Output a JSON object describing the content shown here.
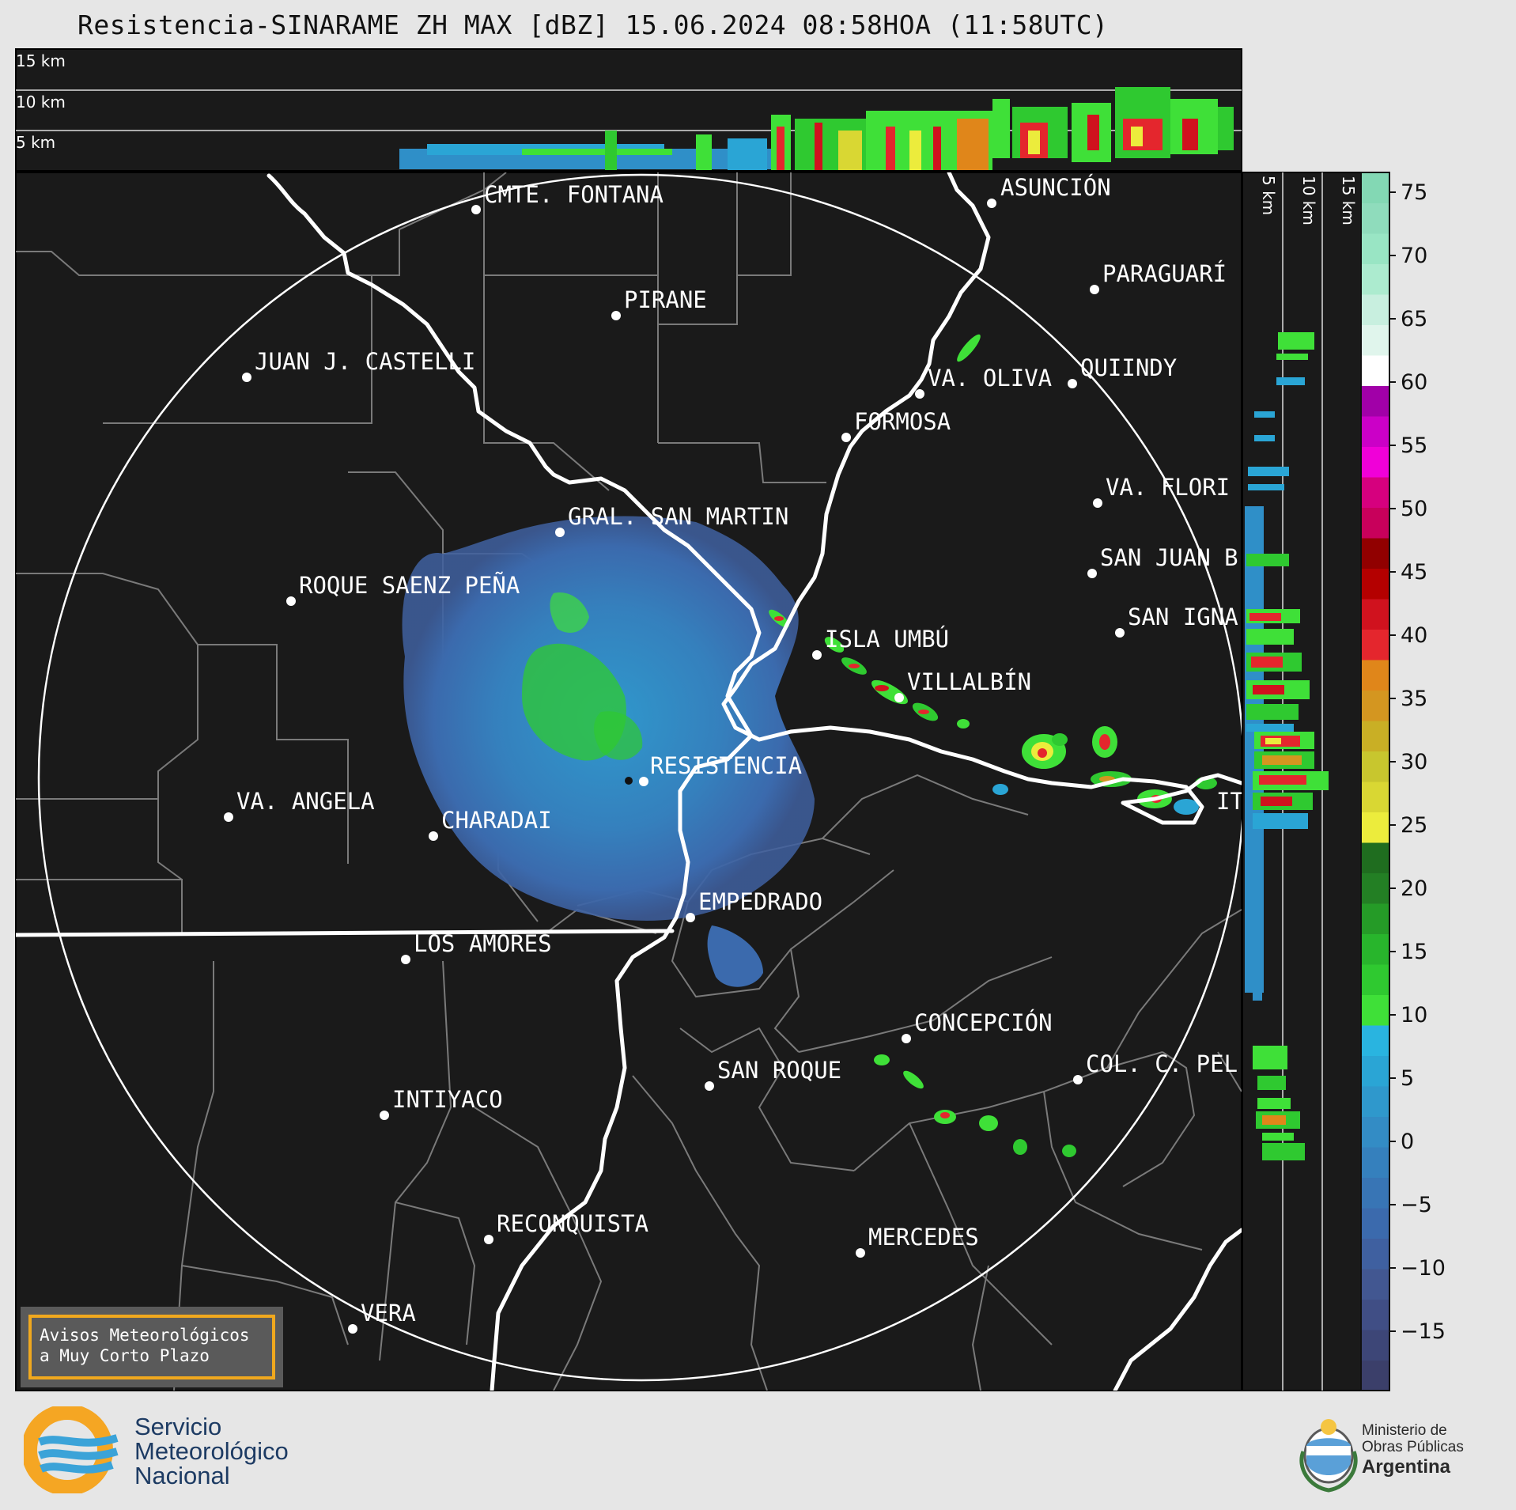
{
  "title": "Resistencia-SINARAME ZH MAX [dBZ] 15.06.2024 08:58HOA (11:58UTC)",
  "top_panel": {
    "km_labels": [
      "15 km",
      "10 km",
      "5 km"
    ]
  },
  "side_panel": {
    "km_labels": [
      "5 km",
      "10 km",
      "15 km"
    ]
  },
  "colorbar": {
    "ticks": [
      "75",
      "70",
      "65",
      "60",
      "55",
      "50",
      "45",
      "40",
      "35",
      "30",
      "25",
      "20",
      "15",
      "10",
      "5",
      "0",
      "−5",
      "−10",
      "−15"
    ],
    "colors": [
      "#3b3f6a",
      "#3d4677",
      "#404e85",
      "#425791",
      "#3f60a0",
      "#3b6aad",
      "#3875b5",
      "#3580bd",
      "#338cc5",
      "#2f98cc",
      "#2aa5d5",
      "#29b4e0",
      "#3fe038",
      "#2fc930",
      "#28b52c",
      "#259b27",
      "#237f24",
      "#1f6d1f",
      "#ecec3c",
      "#d9d733",
      "#c8c62e",
      "#c9af25",
      "#d49620",
      "#e0861a",
      "#e4262d",
      "#d0121e",
      "#b40000",
      "#910000",
      "#c8005b",
      "#d6007e",
      "#f000d8",
      "#cb00c7",
      "#a100a8",
      "#ffffff",
      "#e0f5ec",
      "#c8efdf",
      "#acebcf",
      "#99e5c4",
      "#8fdcbc",
      "#83d8b4"
    ]
  },
  "cities": [
    {
      "name": "CMTE. FONTANA"
    },
    {
      "name": "ASUNCIÓN"
    },
    {
      "name": "PARAGUARÍ"
    },
    {
      "name": "PIRANE"
    },
    {
      "name": "JUAN J. CASTELLI"
    },
    {
      "name": "VA. OLIVA"
    },
    {
      "name": "QUIINDY"
    },
    {
      "name": "FORMOSA"
    },
    {
      "name": "VA. FLORI"
    },
    {
      "name": "GRAL. SAN MARTIN"
    },
    {
      "name": "SAN JUAN B"
    },
    {
      "name": "ROQUE SAENZ PEÑA"
    },
    {
      "name": "SAN IGNA"
    },
    {
      "name": "ISLA UMBÚ"
    },
    {
      "name": "VILLALBÍN"
    },
    {
      "name": "RESISTENCIA"
    },
    {
      "name": "IT"
    },
    {
      "name": "VA. ANGELA"
    },
    {
      "name": "CHARADAI"
    },
    {
      "name": "EMPEDRADO"
    },
    {
      "name": "LOS AMORES"
    },
    {
      "name": "CONCEPCIÓN"
    },
    {
      "name": "SAN ROQUE"
    },
    {
      "name": "COL. C. PEL"
    },
    {
      "name": "INTIYACO"
    },
    {
      "name": "RECONQUISTA"
    },
    {
      "name": "MERCEDES"
    },
    {
      "name": "VERA"
    }
  ],
  "warning_box": {
    "line1": "Avisos Meteorológicos",
    "line2": "a Muy Corto Plazo"
  },
  "footer": {
    "smn": [
      "Servicio",
      "Meteorológico",
      "Nacional"
    ],
    "ministry": [
      "Ministerio de",
      "Obras Públicas",
      "Argentina"
    ]
  }
}
